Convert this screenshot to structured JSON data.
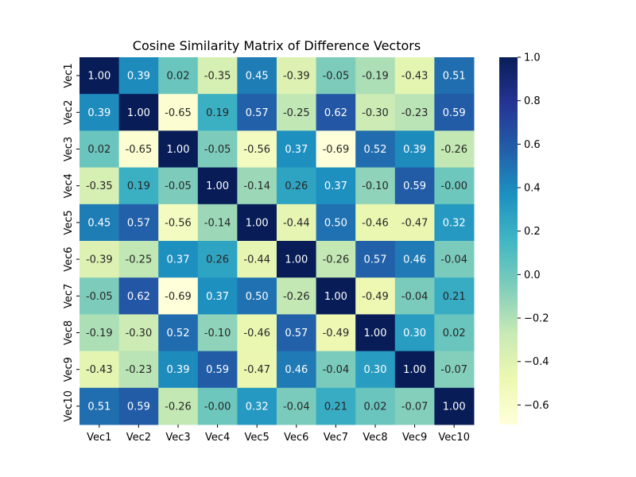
{
  "chart_data": {
    "type": "heatmap",
    "title": "Cosine Similarity Matrix of Difference Vectors",
    "xlabel": "",
    "ylabel": "",
    "x_labels": [
      "Vec1",
      "Vec2",
      "Vec3",
      "Vec4",
      "Vec5",
      "Vec6",
      "Vec7",
      "Vec8",
      "Vec9",
      "Vec10"
    ],
    "y_labels": [
      "Vec1",
      "Vec2",
      "Vec3",
      "Vec4",
      "Vec5",
      "Vec6",
      "Vec7",
      "Vec8",
      "Vec9",
      "Vec10"
    ],
    "values": [
      [
        1.0,
        0.39,
        0.02,
        -0.35,
        0.45,
        -0.39,
        -0.05,
        -0.19,
        -0.43,
        0.51
      ],
      [
        0.39,
        1.0,
        -0.65,
        0.19,
        0.57,
        -0.25,
        0.62,
        -0.3,
        -0.23,
        0.59
      ],
      [
        0.02,
        -0.65,
        1.0,
        -0.05,
        -0.56,
        0.37,
        -0.69,
        0.52,
        0.39,
        -0.26
      ],
      [
        -0.35,
        0.19,
        -0.05,
        1.0,
        -0.14,
        0.26,
        0.37,
        -0.1,
        0.59,
        -0.0
      ],
      [
        0.45,
        0.57,
        -0.56,
        -0.14,
        1.0,
        -0.44,
        0.5,
        -0.46,
        -0.47,
        0.32
      ],
      [
        -0.39,
        -0.25,
        0.37,
        0.26,
        -0.44,
        1.0,
        -0.26,
        0.57,
        0.46,
        -0.04
      ],
      [
        -0.05,
        0.62,
        -0.69,
        0.37,
        0.5,
        -0.26,
        1.0,
        -0.49,
        -0.04,
        0.21
      ],
      [
        -0.19,
        -0.3,
        0.52,
        -0.1,
        -0.46,
        0.57,
        -0.49,
        1.0,
        0.3,
        0.02
      ],
      [
        -0.43,
        -0.23,
        0.39,
        0.59,
        -0.47,
        0.46,
        -0.04,
        0.3,
        1.0,
        -0.07
      ],
      [
        0.51,
        0.59,
        -0.26,
        -0.0,
        0.32,
        -0.04,
        0.21,
        0.02,
        -0.07,
        1.0
      ]
    ],
    "value_format": "2 decimals",
    "annotations": true,
    "colormap": "YlGnBu",
    "colormap_stops": [
      "#ffffd9",
      "#edf8b1",
      "#c7e9b4",
      "#7fcdbb",
      "#41b6c4",
      "#1d91c0",
      "#225ea8",
      "#253494",
      "#081d58"
    ],
    "vmin": -0.69,
    "vmax": 1.0,
    "colorbar_ticks": [
      -0.6,
      -0.4,
      -0.2,
      0.0,
      0.2,
      0.4,
      0.6,
      0.8,
      1.0
    ],
    "colorbar_tick_labels": [
      "−0.6",
      "−0.4",
      "−0.2",
      "0.0",
      "0.2",
      "0.4",
      "0.6",
      "0.8",
      "1.0"
    ],
    "grid": false,
    "legend": "colorbar-right"
  }
}
